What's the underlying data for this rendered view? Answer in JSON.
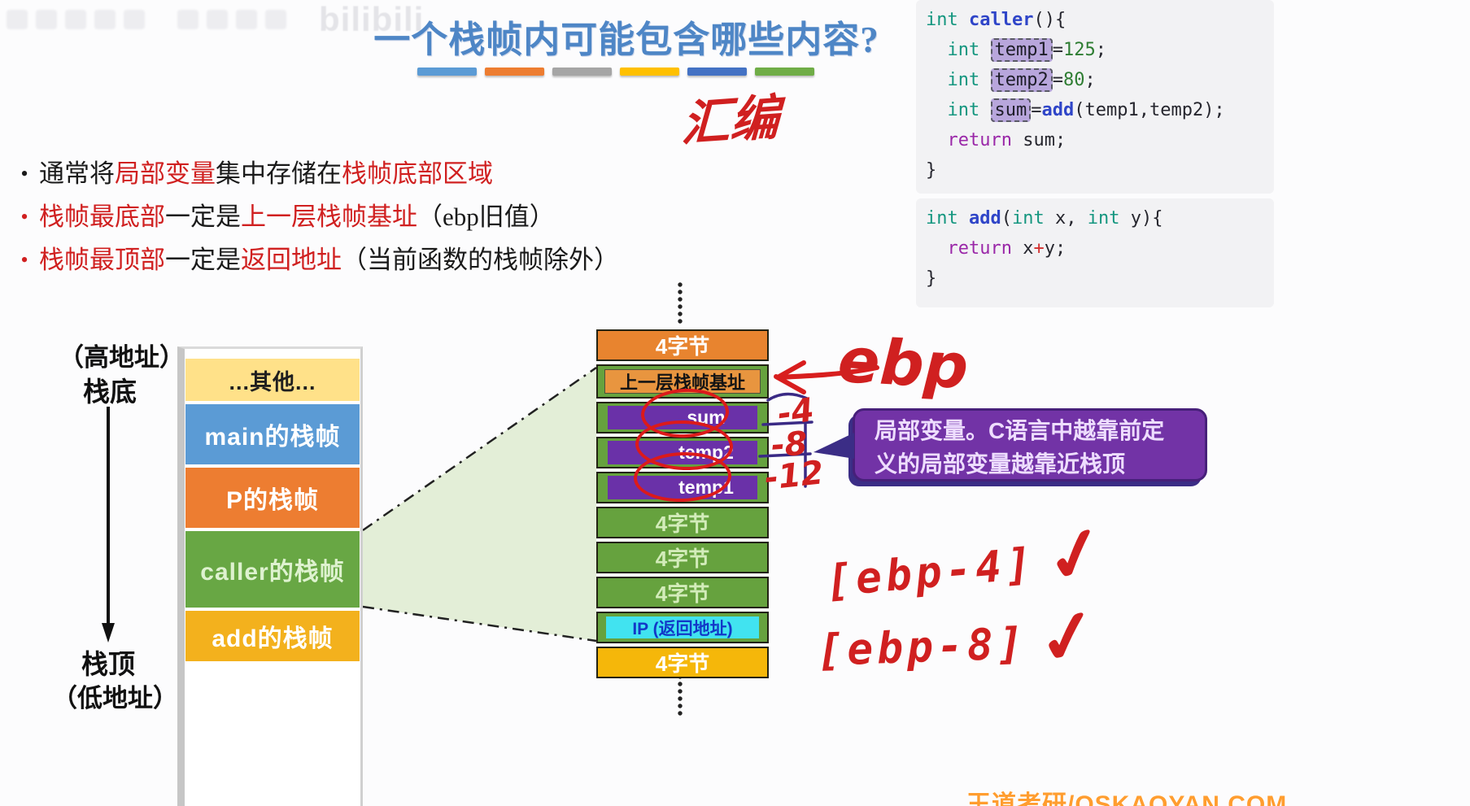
{
  "colors": {
    "title": "#4E86C6",
    "red": "#D02020",
    "c-kw": "#14967F",
    "c-fn": "#2F45C8",
    "c-num": "#2E7D32",
    "c-ret": "#9A27A8",
    "c-op": "#D32F2F",
    "c-hl": "#B8A6DC",
    "d-orange": "#E8842F",
    "d-green": "#66A23E",
    "d-purple": "#6A31A8",
    "d-cyan": "#41E3F0",
    "d-gold": "#F5B70A",
    "callout": "#7233A6",
    "callout-tail": "#3B2D86"
  },
  "watermark": {
    "logo": "bilibili"
  },
  "title": {
    "text": "一个栈帧内可能包含哪些内容?",
    "bar_colors": [
      "#5B9BD5",
      "#ED7D31",
      "#A5A5A5",
      "#FFC000",
      "#4472C4",
      "#70AD47"
    ]
  },
  "annotations": {
    "assembly": "汇编",
    "ebp": "ebp",
    "offsets": [
      "-4",
      "-8",
      "-12"
    ],
    "ebp4": "[ebp-4]",
    "ebp8": "[ebp-8]",
    "check": "✓"
  },
  "code": {
    "caller": [
      [
        {
          "c": "kw",
          "t": "int"
        },
        {
          "c": "pl",
          "t": " "
        },
        {
          "c": "fn",
          "t": "caller"
        },
        {
          "c": "pl",
          "t": "(){"
        }
      ],
      [
        {
          "c": "pl",
          "t": "  "
        },
        {
          "c": "kw",
          "t": "int"
        },
        {
          "c": "pl",
          "t": " "
        },
        {
          "c": "hl",
          "t": "temp1"
        },
        {
          "c": "pl",
          "t": "="
        },
        {
          "c": "num",
          "t": "125"
        },
        {
          "c": "pl",
          "t": ";"
        }
      ],
      [
        {
          "c": "pl",
          "t": "  "
        },
        {
          "c": "kw",
          "t": "int"
        },
        {
          "c": "pl",
          "t": " "
        },
        {
          "c": "hl",
          "t": "temp2"
        },
        {
          "c": "pl",
          "t": "="
        },
        {
          "c": "num",
          "t": "80"
        },
        {
          "c": "pl",
          "t": ";"
        }
      ],
      [
        {
          "c": "pl",
          "t": "  "
        },
        {
          "c": "kw",
          "t": "int"
        },
        {
          "c": "pl",
          "t": " "
        },
        {
          "c": "hl",
          "t": "sum"
        },
        {
          "c": "pl",
          "t": "="
        },
        {
          "c": "fn",
          "t": "add"
        },
        {
          "c": "pl",
          "t": "(temp1,temp2);"
        }
      ],
      [
        {
          "c": "pl",
          "t": "  "
        },
        {
          "c": "ret",
          "t": "return"
        },
        {
          "c": "pl",
          "t": " sum;"
        }
      ],
      [
        {
          "c": "pl",
          "t": "}"
        }
      ]
    ],
    "add": [
      [
        {
          "c": "kw",
          "t": "int"
        },
        {
          "c": "pl",
          "t": " "
        },
        {
          "c": "fn",
          "t": "add"
        },
        {
          "c": "pl",
          "t": "("
        },
        {
          "c": "kw",
          "t": "int"
        },
        {
          "c": "pl",
          "t": " x, "
        },
        {
          "c": "kw",
          "t": "int"
        },
        {
          "c": "pl",
          "t": " y){"
        }
      ],
      [
        {
          "c": "pl",
          "t": "  "
        },
        {
          "c": "ret",
          "t": "return"
        },
        {
          "c": "pl",
          "t": " x"
        },
        {
          "c": "op",
          "t": "+"
        },
        {
          "c": "pl",
          "t": "y;"
        }
      ],
      [
        {
          "c": "pl",
          "t": "}"
        }
      ]
    ]
  },
  "bullets": [
    {
      "dot": "k",
      "segments": [
        {
          "t": "通常将",
          "s": "k"
        },
        {
          "t": "局部变量",
          "s": "r"
        },
        {
          "t": "集中存储在",
          "s": "k"
        },
        {
          "t": "栈帧底部区域",
          "s": "r"
        }
      ]
    },
    {
      "dot": "r",
      "segments": [
        {
          "t": "栈帧最底部",
          "s": "r"
        },
        {
          "t": "一定是",
          "s": "k"
        },
        {
          "t": "上一层栈帧基址",
          "s": "r"
        },
        {
          "t": "（ebp旧值）",
          "s": "k"
        }
      ]
    },
    {
      "dot": "r",
      "segments": [
        {
          "t": "栈帧最顶部",
          "s": "r"
        },
        {
          "t": "一定是",
          "s": "k"
        },
        {
          "t": "返回地址",
          "s": "r"
        },
        {
          "t": "（当前函数的栈帧除外）",
          "s": "k"
        }
      ]
    }
  ],
  "left_stack": {
    "label_high": "（高地址）",
    "label_bottom": "栈底",
    "label_top": "栈顶",
    "label_low": "（低地址）",
    "frames": [
      {
        "label": "...其他...",
        "bg": "#FFE189",
        "fg": "#1f1f1f"
      },
      {
        "label": "main的栈帧",
        "bg": "#5B9BD5",
        "fg": "#ffffff"
      },
      {
        "label": "P的栈帧",
        "bg": "#ED7D31",
        "fg": "#ffffff"
      },
      {
        "label": "caller的栈帧",
        "bg": "#68A744",
        "fg": "#def2cf"
      },
      {
        "label": "add的栈帧",
        "bg": "#F3B11D",
        "fg": "#ffffff"
      }
    ]
  },
  "frame_detail": {
    "rows": [
      {
        "label": "4字节",
        "type": "orange"
      },
      {
        "label": "上一层栈帧基址",
        "type": "base"
      },
      {
        "label": "sum",
        "type": "var"
      },
      {
        "label": "temp2",
        "type": "var"
      },
      {
        "label": "temp1",
        "type": "var"
      },
      {
        "label": "4字节",
        "type": "green"
      },
      {
        "label": "4字节",
        "type": "green"
      },
      {
        "label": "4字节",
        "type": "green"
      },
      {
        "label": "IP (返回地址)",
        "type": "ip"
      },
      {
        "label": "4字节",
        "type": "gold"
      }
    ]
  },
  "callout": {
    "line1": "局部变量。C语言中越靠前定",
    "line2": "义的局部变量越靠近栈顶"
  },
  "footer_watermark": "王道考研/OSKAOYAN.COM"
}
